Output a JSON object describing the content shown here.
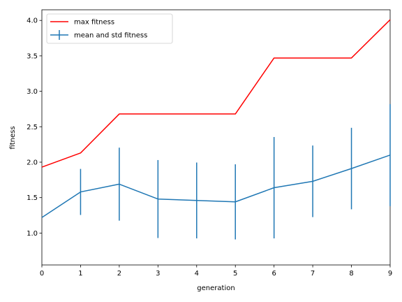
{
  "chart_data": {
    "type": "line",
    "title": "",
    "xlabel": "generation",
    "ylabel": "fitness",
    "xlim": [
      0,
      9
    ],
    "ylim": [
      0.55,
      4.15
    ],
    "x": [
      0,
      1,
      2,
      3,
      4,
      5,
      6,
      7,
      8,
      9
    ],
    "xticks": [
      "0",
      "1",
      "2",
      "3",
      "4",
      "5",
      "6",
      "7",
      "8",
      "9"
    ],
    "yticks": [
      "1.0",
      "1.5",
      "2.0",
      "2.5",
      "3.0",
      "3.5",
      "4.0"
    ],
    "grid": false,
    "legend_position": "upper left",
    "series": [
      {
        "name": "max fitness",
        "color": "#ff0000",
        "style": "line",
        "values": [
          1.93,
          2.13,
          2.68,
          2.68,
          2.68,
          2.68,
          3.47,
          3.47,
          3.47,
          4.01
        ]
      },
      {
        "name": "mean and std fitness",
        "color": "#1f77b4",
        "style": "errorbar",
        "values": [
          1.22,
          1.58,
          1.69,
          1.48,
          1.46,
          1.44,
          1.64,
          1.73,
          1.91,
          2.1
        ],
        "std": [
          0.0,
          0.325,
          0.515,
          0.55,
          0.535,
          0.53,
          0.715,
          0.505,
          0.575,
          0.72
        ]
      }
    ]
  }
}
